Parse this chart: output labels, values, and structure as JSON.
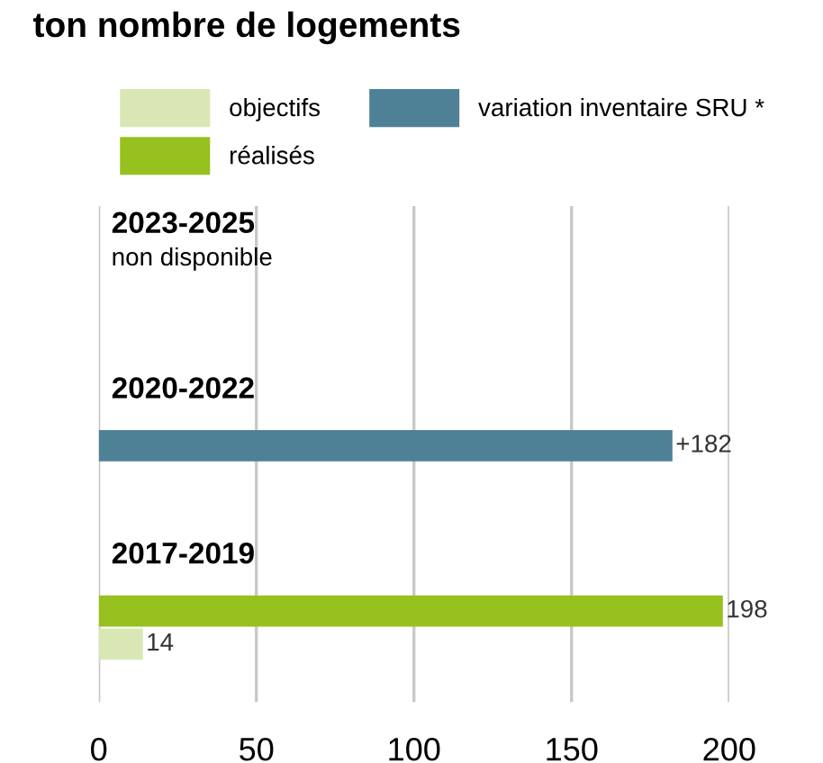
{
  "chart_data": {
    "type": "bar",
    "orientation": "horizontal",
    "title": "ton nombre de logements",
    "categories": [
      "2023-2025",
      "2020-2022",
      "2017-2019"
    ],
    "series": [
      {
        "name": "objectifs",
        "color": "#d9e7b5",
        "values": [
          null,
          null,
          14
        ],
        "value_labels": [
          null,
          null,
          "14"
        ]
      },
      {
        "name": "réalisés",
        "color": "#97c11f",
        "values": [
          null,
          null,
          198
        ],
        "value_labels": [
          null,
          null,
          "198"
        ]
      },
      {
        "name": "variation inventaire SRU *",
        "color": "#4f8196",
        "values": [
          null,
          182,
          null
        ],
        "value_labels": [
          null,
          "+182",
          null
        ]
      }
    ],
    "annotations": [
      "non disponible"
    ],
    "xlim": [
      0,
      200
    ],
    "xticks": [
      0,
      50,
      100,
      150,
      200
    ],
    "grid": "x",
    "legend": "top"
  }
}
